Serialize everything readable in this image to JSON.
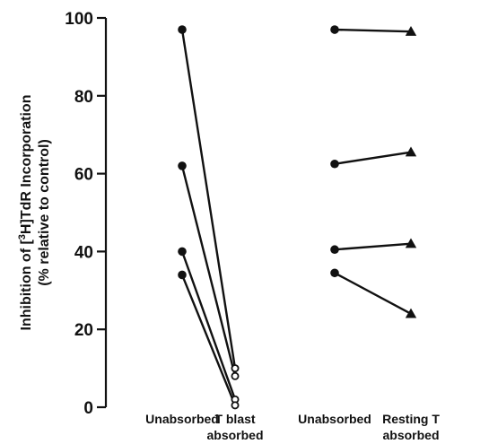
{
  "chart_data": {
    "type": "scatter",
    "title": "",
    "ylabel": {
      "line1_prefix": "Inhibition of [",
      "line1_sup": "3",
      "line1_suffix": "H]TdR Incorporation",
      "line2": "(% relative to control)"
    },
    "xlabel": "",
    "ylim": [
      0,
      100
    ],
    "yticks": [
      0,
      20,
      40,
      60,
      80,
      100
    ],
    "categories": [
      {
        "line1": "Unabsorbed",
        "line2": ""
      },
      {
        "line1": "T blast",
        "line2": "absorbed"
      },
      {
        "line1": "Unabsorbed",
        "line2": ""
      },
      {
        "line1": "Resting T",
        "line2": "absorbed"
      }
    ],
    "groups": [
      {
        "from_category": 0,
        "to_category": 1,
        "from_marker": "filled-circle",
        "to_marker": "open-circle",
        "pairs": [
          {
            "from": 97,
            "to": 10
          },
          {
            "from": 62,
            "to": 8
          },
          {
            "from": 40,
            "to": 2
          },
          {
            "from": 34,
            "to": 0.5
          }
        ]
      },
      {
        "from_category": 2,
        "to_category": 3,
        "from_marker": "filled-circle",
        "to_marker": "filled-triangle",
        "pairs": [
          {
            "from": 97,
            "to": 96.5
          },
          {
            "from": 62.5,
            "to": 65.5
          },
          {
            "from": 40.5,
            "to": 42
          },
          {
            "from": 34.5,
            "to": 24
          }
        ]
      }
    ],
    "grid": false,
    "legend": "none"
  }
}
